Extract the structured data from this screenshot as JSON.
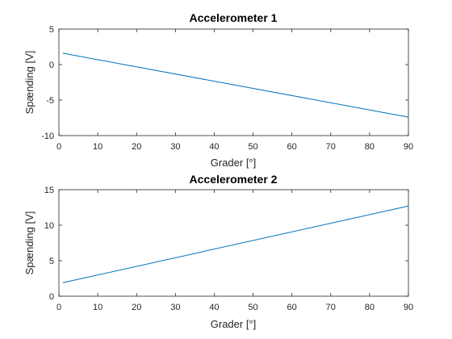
{
  "chart_data": [
    {
      "type": "line",
      "title": "Accelerometer 1",
      "xlabel": "Grader [°]",
      "ylabel": "Spænding [V]",
      "xlim": [
        0,
        90
      ],
      "ylim": [
        -10,
        5
      ],
      "xticks": [
        "0",
        "10",
        "20",
        "30",
        "40",
        "50",
        "60",
        "70",
        "80",
        "90"
      ],
      "yticks": [
        "-10",
        "-5",
        "0",
        "5"
      ],
      "grid": false,
      "line_color": "#0072BD",
      "series": [
        {
          "x": [
            1,
            90
          ],
          "y": [
            1.6,
            -7.4
          ]
        }
      ]
    },
    {
      "type": "line",
      "title": "Accelerometer 2",
      "xlabel": "Grader [°]",
      "ylabel": "Spænding [V]",
      "xlim": [
        0,
        90
      ],
      "ylim": [
        0,
        15
      ],
      "xticks": [
        "0",
        "10",
        "20",
        "30",
        "40",
        "50",
        "60",
        "70",
        "80",
        "90"
      ],
      "yticks": [
        "0",
        "5",
        "10",
        "15"
      ],
      "grid": false,
      "line_color": "#0072BD",
      "series": [
        {
          "x": [
            1,
            90
          ],
          "y": [
            1.9,
            12.7
          ]
        }
      ]
    }
  ]
}
